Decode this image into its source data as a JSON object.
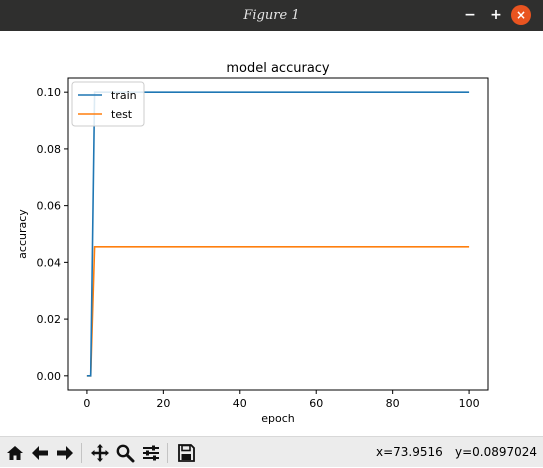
{
  "window": {
    "title": "Figure 1",
    "minimize_label": "−",
    "maximize_label": "+",
    "close_label": "×"
  },
  "chart_data": {
    "type": "line",
    "title": "model accuracy",
    "xlabel": "epoch",
    "ylabel": "accuracy",
    "xlim": [
      -4.95,
      104.95
    ],
    "ylim": [
      -0.005,
      0.105
    ],
    "xticks": [
      0,
      20,
      40,
      60,
      80,
      100
    ],
    "xtick_labels": [
      "0",
      "20",
      "40",
      "60",
      "80",
      "100"
    ],
    "yticks": [
      0.0,
      0.02,
      0.04,
      0.06,
      0.08,
      0.1
    ],
    "ytick_labels": [
      "0.00",
      "0.02",
      "0.04",
      "0.06",
      "0.08",
      "0.10"
    ],
    "legend_position": "top-left",
    "grid": false,
    "series": [
      {
        "name": "train",
        "color": "#1f77b4",
        "x": [
          0,
          1,
          2,
          100
        ],
        "y": [
          0.0,
          0.0,
          0.1,
          0.1
        ]
      },
      {
        "name": "test",
        "color": "#ff7f0e",
        "x": [
          0,
          1,
          2,
          100
        ],
        "y": [
          0.0,
          0.0,
          0.0455,
          0.0455
        ]
      }
    ]
  },
  "toolbar": {
    "buttons": [
      {
        "name": "home-icon",
        "label": "Home"
      },
      {
        "name": "back-arrow-icon",
        "label": "Back"
      },
      {
        "name": "forward-arrow-icon",
        "label": "Forward"
      },
      {
        "name": "pan-icon",
        "label": "Pan"
      },
      {
        "name": "zoom-icon",
        "label": "Zoom"
      },
      {
        "name": "configure-subplots-icon",
        "label": "Subplots"
      },
      {
        "name": "save-icon",
        "label": "Save"
      }
    ],
    "x_readout": "x=73.9516",
    "y_readout": "y=0.0897024"
  }
}
